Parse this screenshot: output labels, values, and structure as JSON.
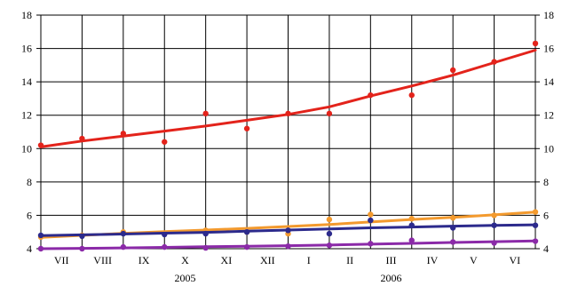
{
  "chart_data": {
    "type": "scatter",
    "title": "",
    "xlabel": "",
    "ylabel": "",
    "ylim": [
      4,
      18
    ],
    "y_ticks": [
      4,
      6,
      8,
      10,
      12,
      14,
      16,
      18
    ],
    "grid": true,
    "legend": "none",
    "categories": [
      "VII",
      "VIII",
      "IX",
      "X",
      "XI",
      "XII",
      "I",
      "II",
      "III",
      "IV",
      "V",
      "VI"
    ],
    "year_labels": [
      {
        "text": "2005",
        "under": "X"
      },
      {
        "text": "2006",
        "under": "III"
      }
    ],
    "series": [
      {
        "color": "#e3231b",
        "point_x": [
          0,
          1,
          2,
          3,
          4,
          5,
          6,
          7,
          8,
          9,
          10,
          11,
          12
        ],
        "points": [
          10.2,
          10.6,
          10.9,
          10.4,
          12.1,
          11.2,
          12.1,
          12.1,
          13.2,
          13.2,
          14.7,
          15.2,
          16.3
        ],
        "trend": [
          10.1,
          10.45,
          10.75,
          11.05,
          11.35,
          11.7,
          12.05,
          12.5,
          13.15,
          13.75,
          14.4,
          15.15,
          15.9
        ]
      },
      {
        "color": "#f39a2e",
        "point_x": [
          0,
          1,
          2,
          3,
          4,
          5,
          6,
          7,
          8,
          9,
          10,
          11,
          12
        ],
        "points": [
          4.7,
          4.8,
          5.0,
          4.9,
          5.1,
          5.0,
          4.9,
          5.75,
          6.05,
          5.8,
          5.85,
          6.0,
          6.2
        ],
        "trend": [
          4.68,
          4.8,
          4.92,
          5.02,
          5.12,
          5.22,
          5.33,
          5.45,
          5.6,
          5.75,
          5.88,
          6.03,
          6.2
        ]
      },
      {
        "color": "#2c2a8c",
        "point_x": [
          0,
          1,
          2,
          3,
          4,
          5,
          6,
          7,
          8,
          9,
          10,
          11,
          12
        ],
        "points": [
          4.8,
          4.75,
          4.9,
          4.85,
          4.9,
          5.0,
          5.1,
          4.9,
          5.7,
          5.4,
          5.25,
          5.4,
          5.4
        ],
        "trend": [
          4.78,
          4.83,
          4.88,
          4.93,
          4.98,
          5.05,
          5.12,
          5.18,
          5.25,
          5.3,
          5.35,
          5.4,
          5.43
        ]
      },
      {
        "color": "#8b2aa8",
        "point_x": [
          0,
          1,
          2,
          3,
          4,
          5,
          6,
          7,
          8,
          9,
          10,
          11,
          12
        ],
        "points": [
          4.0,
          4.0,
          4.1,
          4.1,
          4.05,
          4.1,
          4.15,
          4.2,
          4.3,
          4.5,
          4.4,
          4.35,
          4.45
        ],
        "trend": [
          4.0,
          4.02,
          4.05,
          4.08,
          4.12,
          4.15,
          4.18,
          4.22,
          4.27,
          4.32,
          4.37,
          4.42,
          4.47
        ]
      }
    ]
  }
}
